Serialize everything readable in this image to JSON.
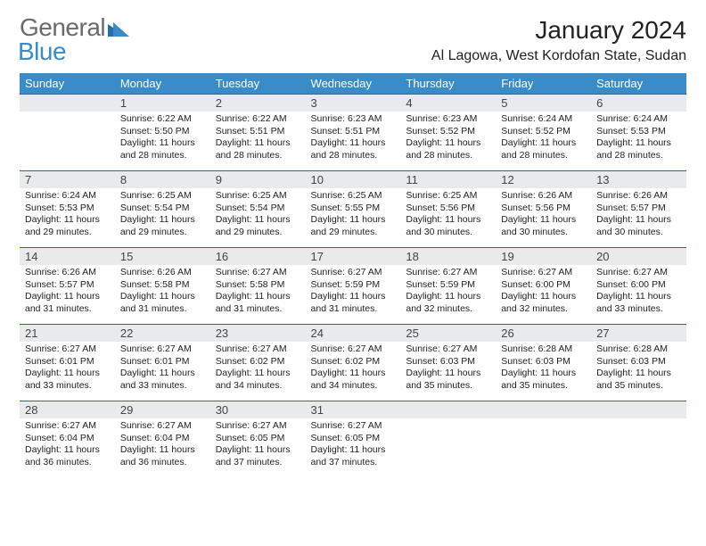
{
  "logo": {
    "general": "General",
    "blue": "Blue"
  },
  "title": "January 2024",
  "location": "Al Lagowa, West Kordofan State, Sudan",
  "colors": {
    "header_bg": "#3a8cc9",
    "header_rule": "#3a5fa0",
    "daynum_bg": "#e9eaeb",
    "logo_grey": "#6a6a6a",
    "logo_blue": "#3a8cc9"
  },
  "weekdays": [
    "Sunday",
    "Monday",
    "Tuesday",
    "Wednesday",
    "Thursday",
    "Friday",
    "Saturday"
  ],
  "weeks": [
    [
      {
        "n": "",
        "empty": true,
        "sunrise": "",
        "sunset": "",
        "daylight": ""
      },
      {
        "n": "1",
        "sunrise": "6:22 AM",
        "sunset": "5:50 PM",
        "daylight": "11 hours and 28 minutes."
      },
      {
        "n": "2",
        "sunrise": "6:22 AM",
        "sunset": "5:51 PM",
        "daylight": "11 hours and 28 minutes."
      },
      {
        "n": "3",
        "sunrise": "6:23 AM",
        "sunset": "5:51 PM",
        "daylight": "11 hours and 28 minutes."
      },
      {
        "n": "4",
        "sunrise": "6:23 AM",
        "sunset": "5:52 PM",
        "daylight": "11 hours and 28 minutes."
      },
      {
        "n": "5",
        "sunrise": "6:24 AM",
        "sunset": "5:52 PM",
        "daylight": "11 hours and 28 minutes."
      },
      {
        "n": "6",
        "sunrise": "6:24 AM",
        "sunset": "5:53 PM",
        "daylight": "11 hours and 28 minutes."
      }
    ],
    [
      {
        "n": "7",
        "sunrise": "6:24 AM",
        "sunset": "5:53 PM",
        "daylight": "11 hours and 29 minutes."
      },
      {
        "n": "8",
        "sunrise": "6:25 AM",
        "sunset": "5:54 PM",
        "daylight": "11 hours and 29 minutes."
      },
      {
        "n": "9",
        "sunrise": "6:25 AM",
        "sunset": "5:54 PM",
        "daylight": "11 hours and 29 minutes."
      },
      {
        "n": "10",
        "sunrise": "6:25 AM",
        "sunset": "5:55 PM",
        "daylight": "11 hours and 29 minutes."
      },
      {
        "n": "11",
        "sunrise": "6:25 AM",
        "sunset": "5:56 PM",
        "daylight": "11 hours and 30 minutes."
      },
      {
        "n": "12",
        "sunrise": "6:26 AM",
        "sunset": "5:56 PM",
        "daylight": "11 hours and 30 minutes."
      },
      {
        "n": "13",
        "sunrise": "6:26 AM",
        "sunset": "5:57 PM",
        "daylight": "11 hours and 30 minutes."
      }
    ],
    [
      {
        "n": "14",
        "sunrise": "6:26 AM",
        "sunset": "5:57 PM",
        "daylight": "11 hours and 31 minutes."
      },
      {
        "n": "15",
        "sunrise": "6:26 AM",
        "sunset": "5:58 PM",
        "daylight": "11 hours and 31 minutes."
      },
      {
        "n": "16",
        "sunrise": "6:27 AM",
        "sunset": "5:58 PM",
        "daylight": "11 hours and 31 minutes."
      },
      {
        "n": "17",
        "sunrise": "6:27 AM",
        "sunset": "5:59 PM",
        "daylight": "11 hours and 31 minutes."
      },
      {
        "n": "18",
        "sunrise": "6:27 AM",
        "sunset": "5:59 PM",
        "daylight": "11 hours and 32 minutes."
      },
      {
        "n": "19",
        "sunrise": "6:27 AM",
        "sunset": "6:00 PM",
        "daylight": "11 hours and 32 minutes."
      },
      {
        "n": "20",
        "sunrise": "6:27 AM",
        "sunset": "6:00 PM",
        "daylight": "11 hours and 33 minutes."
      }
    ],
    [
      {
        "n": "21",
        "sunrise": "6:27 AM",
        "sunset": "6:01 PM",
        "daylight": "11 hours and 33 minutes."
      },
      {
        "n": "22",
        "sunrise": "6:27 AM",
        "sunset": "6:01 PM",
        "daylight": "11 hours and 33 minutes."
      },
      {
        "n": "23",
        "sunrise": "6:27 AM",
        "sunset": "6:02 PM",
        "daylight": "11 hours and 34 minutes."
      },
      {
        "n": "24",
        "sunrise": "6:27 AM",
        "sunset": "6:02 PM",
        "daylight": "11 hours and 34 minutes."
      },
      {
        "n": "25",
        "sunrise": "6:27 AM",
        "sunset": "6:03 PM",
        "daylight": "11 hours and 35 minutes."
      },
      {
        "n": "26",
        "sunrise": "6:28 AM",
        "sunset": "6:03 PM",
        "daylight": "11 hours and 35 minutes."
      },
      {
        "n": "27",
        "sunrise": "6:28 AM",
        "sunset": "6:03 PM",
        "daylight": "11 hours and 35 minutes."
      }
    ],
    [
      {
        "n": "28",
        "sunrise": "6:27 AM",
        "sunset": "6:04 PM",
        "daylight": "11 hours and 36 minutes."
      },
      {
        "n": "29",
        "sunrise": "6:27 AM",
        "sunset": "6:04 PM",
        "daylight": "11 hours and 36 minutes."
      },
      {
        "n": "30",
        "sunrise": "6:27 AM",
        "sunset": "6:05 PM",
        "daylight": "11 hours and 37 minutes."
      },
      {
        "n": "31",
        "sunrise": "6:27 AM",
        "sunset": "6:05 PM",
        "daylight": "11 hours and 37 minutes."
      },
      {
        "n": "",
        "empty": true,
        "sunrise": "",
        "sunset": "",
        "daylight": ""
      },
      {
        "n": "",
        "empty": true,
        "sunrise": "",
        "sunset": "",
        "daylight": ""
      },
      {
        "n": "",
        "empty": true,
        "sunrise": "",
        "sunset": "",
        "daylight": ""
      }
    ]
  ],
  "labels": {
    "sunrise_prefix": "Sunrise: ",
    "sunset_prefix": "Sunset: ",
    "daylight_prefix": "Daylight: "
  }
}
